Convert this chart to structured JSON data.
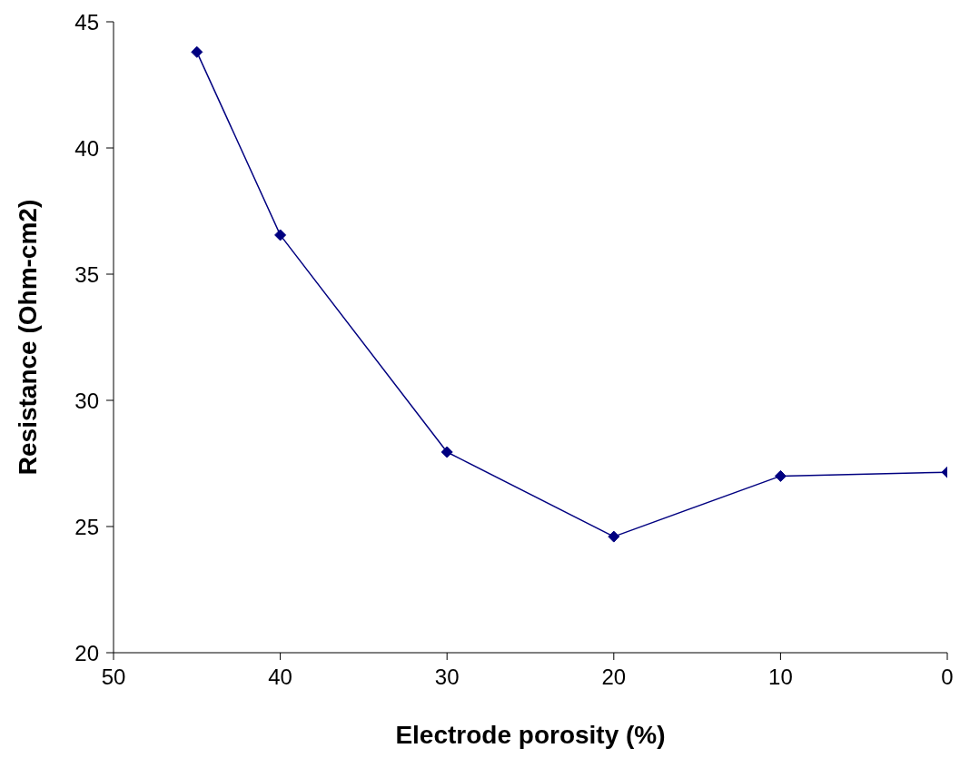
{
  "chart_data": {
    "type": "line",
    "xlabel": "Electrode porosity (%)",
    "ylabel": "Resistance (Ohm-cm2)",
    "x": [
      45,
      40,
      30,
      20,
      10,
      0
    ],
    "series": [
      {
        "color": "#000080",
        "values": [
          43.8,
          36.55,
          27.95,
          24.6,
          27,
          27.15
        ]
      }
    ],
    "xlim": [
      50,
      0
    ],
    "xticks": [
      50,
      40,
      30,
      20,
      10,
      0
    ],
    "ylim": [
      20,
      45
    ],
    "yticks": [
      20,
      25,
      30,
      35,
      40,
      45
    ],
    "grid": false,
    "legend": false,
    "marker": "diamond",
    "line_style": "solid"
  }
}
